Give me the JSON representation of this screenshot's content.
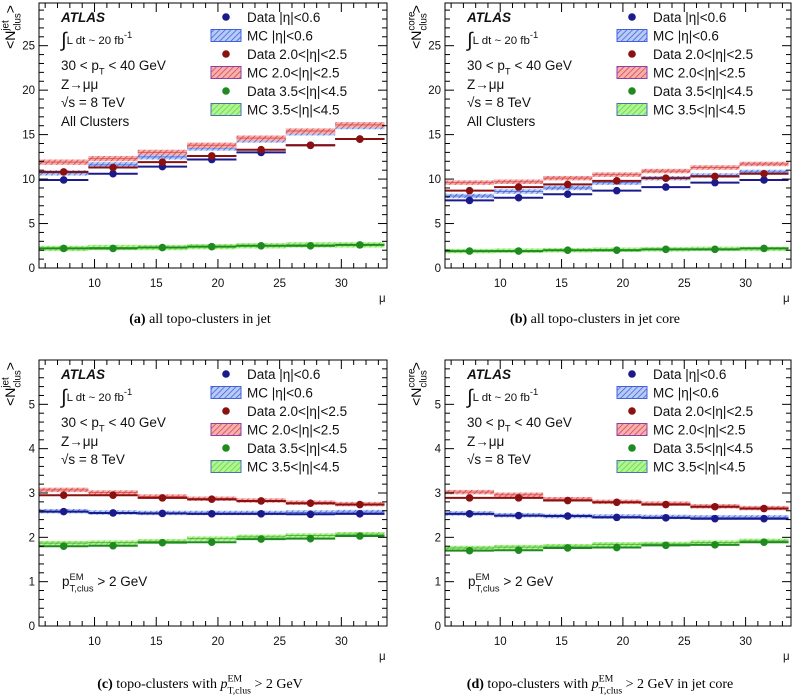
{
  "chart_data": [
    {
      "type": "line",
      "panel": "a",
      "caption": [
        {
          "text": "(a)",
          "style": "bold"
        },
        {
          "text": " all topo-clusters in jet"
        }
      ],
      "ylabel": [
        {
          "text": "<N"
        },
        {
          "text": "jet",
          "style": "sup"
        },
        {
          "text": "clus",
          "style": "subback"
        },
        {
          "text": ">"
        }
      ],
      "xlabel": "μ",
      "xlim": [
        5.5,
        33.7
      ],
      "ylim": [
        0,
        29.8
      ],
      "xticks": [
        10,
        15,
        20,
        25,
        30
      ],
      "yticks": [
        0,
        5,
        10,
        15,
        20,
        25
      ],
      "ytick_minor": 1,
      "bin_edges": [
        5.5,
        9.5,
        13.5,
        17.5,
        21.5,
        25.5,
        29.5,
        33.5
      ],
      "mc_uncertainty": 0.3,
      "annotations": [
        [
          {
            "text": "ATLAS",
            "style": "atlas"
          }
        ],
        [
          {
            "text": "∫",
            "style": "integral"
          },
          {
            "text": "L dt ~ 20 fb",
            "style": "small"
          },
          {
            "text": "-1",
            "style": "sup"
          }
        ],
        [
          {
            "text": "30 < p"
          },
          {
            "text": "T",
            "style": "sub"
          },
          {
            "text": " < 40 GeV"
          }
        ],
        [
          {
            "text": "Z→μμ"
          }
        ],
        [
          {
            "text": "√s = 8 TeV"
          }
        ],
        [
          {
            "text": "All Clusters"
          }
        ]
      ],
      "series": [
        {
          "name": "Data |η|<0.6",
          "kind": "data",
          "color": "#1a1a8c",
          "values": [
            9.9,
            10.6,
            11.4,
            12.2,
            13.0,
            13.8,
            14.5
          ]
        },
        {
          "name": "MC |η|<0.6",
          "kind": "mc",
          "color": "#3355dd",
          "fill": "blue",
          "values": [
            10.7,
            11.6,
            12.5,
            13.5,
            14.4,
            15.2,
            15.9
          ]
        },
        {
          "name": "Data 2.0<|η|<2.5",
          "kind": "data",
          "color": "#8b1010",
          "values": [
            10.8,
            11.3,
            11.9,
            12.6,
            13.3,
            13.8,
            14.5
          ]
        },
        {
          "name": "MC 2.0<|η|<2.5",
          "kind": "mc",
          "color": "#d83a3a",
          "fill": "red",
          "values": [
            11.9,
            12.3,
            13.0,
            13.8,
            14.6,
            15.4,
            16.1
          ]
        },
        {
          "name": "Data 3.5<|η|<4.5",
          "kind": "data",
          "color": "#1f8a1f",
          "values": [
            2.2,
            2.2,
            2.3,
            2.4,
            2.5,
            2.5,
            2.6
          ]
        },
        {
          "name": "MC 3.5<|η|<4.5",
          "kind": "mc",
          "color": "#3a9a2a",
          "fill": "green",
          "values": [
            2.2,
            2.3,
            2.3,
            2.4,
            2.5,
            2.6,
            2.6
          ]
        }
      ]
    },
    {
      "type": "line",
      "panel": "b",
      "caption": [
        {
          "text": "(b)",
          "style": "bold"
        },
        {
          "text": " all topo-clusters in jet core"
        }
      ],
      "ylabel": [
        {
          "text": "<N"
        },
        {
          "text": "core",
          "style": "sup"
        },
        {
          "text": "clus",
          "style": "subback"
        },
        {
          "text": ">"
        }
      ],
      "xlabel": "μ",
      "xlim": [
        5.5,
        33.7
      ],
      "ylim": [
        0,
        29.8
      ],
      "xticks": [
        10,
        15,
        20,
        25,
        30
      ],
      "yticks": [
        0,
        5,
        10,
        15,
        20,
        25
      ],
      "ytick_minor": 1,
      "bin_edges": [
        5.5,
        9.5,
        13.5,
        17.5,
        21.5,
        25.5,
        29.5,
        33.5
      ],
      "mc_uncertainty": 0.25,
      "annotations": [
        [
          {
            "text": "ATLAS",
            "style": "atlas"
          }
        ],
        [
          {
            "text": "∫",
            "style": "integral"
          },
          {
            "text": "L dt ~ 20 fb",
            "style": "small"
          },
          {
            "text": "-1",
            "style": "sup"
          }
        ],
        [
          {
            "text": "30 < p"
          },
          {
            "text": "T",
            "style": "sub"
          },
          {
            "text": " < 40 GeV"
          }
        ],
        [
          {
            "text": "Z→μμ"
          }
        ],
        [
          {
            "text": "√s = 8 TeV"
          }
        ],
        [
          {
            "text": "All Clusters"
          }
        ]
      ],
      "series": [
        {
          "name": "Data |η|<0.6",
          "kind": "data",
          "color": "#1a1a8c",
          "values": [
            7.6,
            7.9,
            8.3,
            8.7,
            9.1,
            9.6,
            9.9
          ]
        },
        {
          "name": "MC |η|<0.6",
          "kind": "mc",
          "color": "#3355dd",
          "fill": "blue",
          "values": [
            8.1,
            8.6,
            9.0,
            9.6,
            10.1,
            10.4,
            10.8
          ]
        },
        {
          "name": "Data 2.0<|η|<2.5",
          "kind": "data",
          "color": "#8b1010",
          "values": [
            8.7,
            9.1,
            9.4,
            9.8,
            10.1,
            10.3,
            10.6
          ]
        },
        {
          "name": "MC 2.0<|η|<2.5",
          "kind": "mc",
          "color": "#d83a3a",
          "fill": "red",
          "values": [
            9.6,
            9.7,
            10.1,
            10.5,
            10.9,
            11.3,
            11.7
          ]
        },
        {
          "name": "Data 3.5<|η|<4.5",
          "kind": "data",
          "color": "#1f8a1f",
          "values": [
            1.9,
            1.9,
            2.0,
            2.0,
            2.1,
            2.1,
            2.2
          ]
        },
        {
          "name": "MC 3.5<|η|<4.5",
          "kind": "mc",
          "color": "#3a9a2a",
          "fill": "green",
          "values": [
            1.9,
            1.95,
            2.0,
            2.05,
            2.1,
            2.15,
            2.15
          ]
        }
      ]
    },
    {
      "type": "line",
      "panel": "c",
      "caption": [
        {
          "text": "(c)",
          "style": "bold"
        },
        {
          "text": " topo-clusters with "
        },
        {
          "text": "p",
          "style": "italic"
        },
        {
          "text": "EM",
          "style": "sup"
        },
        {
          "text": "T,clus",
          "style": "subback"
        },
        {
          "text": " > 2 GeV"
        }
      ],
      "ylabel": [
        {
          "text": "<N"
        },
        {
          "text": "jet",
          "style": "sup"
        },
        {
          "text": "clus",
          "style": "subback"
        },
        {
          "text": ">"
        }
      ],
      "xlabel": "μ",
      "xlim": [
        5.5,
        33.7
      ],
      "ylim": [
        0,
        6
      ],
      "xticks": [
        10,
        15,
        20,
        25,
        30
      ],
      "yticks": [
        0,
        1,
        2,
        3,
        4,
        5
      ],
      "ytick_minor": 0.2,
      "bin_edges": [
        5.5,
        9.5,
        13.5,
        17.5,
        21.5,
        25.5,
        29.5,
        33.5
      ],
      "mc_uncertainty": 0.05,
      "annotations": [
        [
          {
            "text": "ATLAS",
            "style": "atlas"
          }
        ],
        [
          {
            "text": "∫",
            "style": "integral"
          },
          {
            "text": "L dt ~ 20 fb",
            "style": "small"
          },
          {
            "text": "-1",
            "style": "sup"
          }
        ],
        [
          {
            "text": "30 < p"
          },
          {
            "text": "T",
            "style": "sub"
          },
          {
            "text": " < 40 GeV"
          }
        ],
        [
          {
            "text": "Z→μμ"
          }
        ],
        [
          {
            "text": "√s = 8 TeV"
          }
        ]
      ],
      "cut_label": [
        {
          "text": "p"
        },
        {
          "text": "EM",
          "style": "sup"
        },
        {
          "text": "T,clus",
          "style": "subback"
        },
        {
          "text": " > 2 GeV"
        }
      ],
      "series": [
        {
          "name": "Data |η|<0.6",
          "kind": "data",
          "color": "#1a1a8c",
          "values": [
            2.58,
            2.55,
            2.54,
            2.53,
            2.53,
            2.52,
            2.53
          ]
        },
        {
          "name": "MC |η|<0.6",
          "kind": "mc",
          "color": "#3355dd",
          "fill": "blue",
          "values": [
            2.59,
            2.56,
            2.55,
            2.55,
            2.55,
            2.56,
            2.57
          ]
        },
        {
          "name": "Data 2.0<|η|<2.5",
          "kind": "data",
          "color": "#8b1010",
          "values": [
            2.95,
            2.95,
            2.89,
            2.86,
            2.82,
            2.77,
            2.74
          ]
        },
        {
          "name": "MC 2.0<|η|<2.5",
          "kind": "mc",
          "color": "#d83a3a",
          "fill": "red",
          "values": [
            3.07,
            3.01,
            2.92,
            2.87,
            2.83,
            2.78,
            2.75
          ]
        },
        {
          "name": "Data 3.5<|η|<4.5",
          "kind": "data",
          "color": "#1f8a1f",
          "values": [
            1.8,
            1.81,
            1.88,
            1.89,
            1.96,
            1.97,
            2.03
          ]
        },
        {
          "name": "MC 3.5<|η|<4.5",
          "kind": "mc",
          "color": "#3a9a2a",
          "fill": "green",
          "values": [
            1.87,
            1.88,
            1.91,
            1.97,
            2.01,
            2.04,
            2.07
          ]
        }
      ]
    },
    {
      "type": "line",
      "panel": "d",
      "caption": [
        {
          "text": "(d)",
          "style": "bold"
        },
        {
          "text": " topo-clusters with "
        },
        {
          "text": "p",
          "style": "italic"
        },
        {
          "text": "EM",
          "style": "sup"
        },
        {
          "text": "T,clus",
          "style": "subback"
        },
        {
          "text": " > 2 GeV in jet core"
        }
      ],
      "ylabel": [
        {
          "text": "<N"
        },
        {
          "text": "core",
          "style": "sup"
        },
        {
          "text": "clus",
          "style": "subback"
        },
        {
          "text": ">"
        }
      ],
      "xlabel": "μ",
      "xlim": [
        5.5,
        33.7
      ],
      "ylim": [
        0,
        6
      ],
      "xticks": [
        10,
        15,
        20,
        25,
        30
      ],
      "yticks": [
        0,
        1,
        2,
        3,
        4,
        5
      ],
      "ytick_minor": 0.2,
      "bin_edges": [
        5.5,
        9.5,
        13.5,
        17.5,
        21.5,
        25.5,
        29.5,
        33.5
      ],
      "mc_uncertainty": 0.05,
      "annotations": [
        [
          {
            "text": "ATLAS",
            "style": "atlas"
          }
        ],
        [
          {
            "text": "∫",
            "style": "integral"
          },
          {
            "text": "L dt ~ 20 fb",
            "style": "small"
          },
          {
            "text": "-1",
            "style": "sup"
          }
        ],
        [
          {
            "text": "30 < p"
          },
          {
            "text": "T",
            "style": "sub"
          },
          {
            "text": " < 40 GeV"
          }
        ],
        [
          {
            "text": "Z→μμ"
          }
        ],
        [
          {
            "text": "√s = 8 TeV"
          }
        ]
      ],
      "cut_label": [
        {
          "text": "p"
        },
        {
          "text": "EM",
          "style": "sup"
        },
        {
          "text": "T,clus",
          "style": "subback"
        },
        {
          "text": " > 2 GeV"
        }
      ],
      "series": [
        {
          "name": "Data |η|<0.6",
          "kind": "data",
          "color": "#1a1a8c",
          "values": [
            2.53,
            2.49,
            2.48,
            2.45,
            2.44,
            2.42,
            2.42
          ]
        },
        {
          "name": "MC |η|<0.6",
          "kind": "mc",
          "color": "#3355dd",
          "fill": "blue",
          "values": [
            2.54,
            2.5,
            2.48,
            2.47,
            2.46,
            2.45,
            2.45
          ]
        },
        {
          "name": "Data 2.0<|η|<2.5",
          "kind": "data",
          "color": "#8b1010",
          "values": [
            2.89,
            2.89,
            2.83,
            2.79,
            2.74,
            2.69,
            2.65
          ]
        },
        {
          "name": "MC 2.0<|η|<2.5",
          "kind": "mc",
          "color": "#d83a3a",
          "fill": "red",
          "values": [
            3.02,
            2.96,
            2.86,
            2.8,
            2.76,
            2.7,
            2.66
          ]
        },
        {
          "name": "Data 3.5<|η|<4.5",
          "kind": "data",
          "color": "#1f8a1f",
          "values": [
            1.7,
            1.71,
            1.76,
            1.77,
            1.82,
            1.83,
            1.89
          ]
        },
        {
          "name": "MC 3.5<|η|<4.5",
          "kind": "mc",
          "color": "#3a9a2a",
          "fill": "green",
          "values": [
            1.76,
            1.78,
            1.8,
            1.84,
            1.85,
            1.88,
            1.92
          ]
        }
      ]
    }
  ]
}
